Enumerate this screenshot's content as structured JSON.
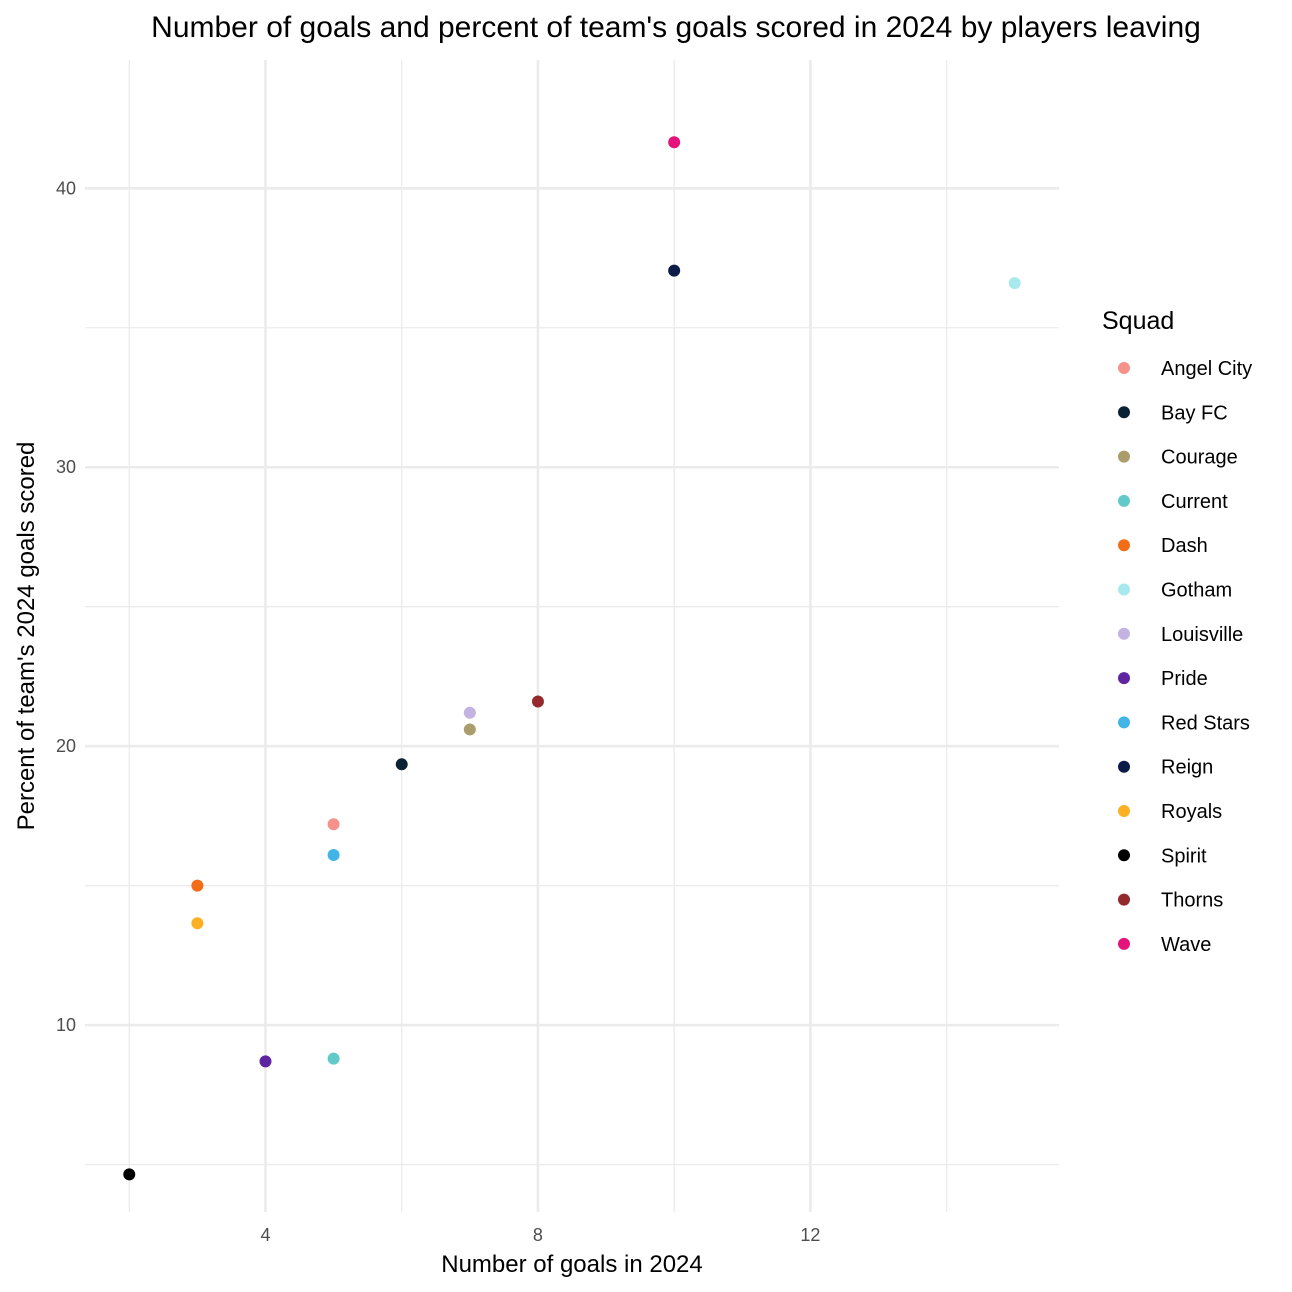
{
  "chart_data": {
    "type": "scatter",
    "title": "Number of goals and percent of team's goals scored in 2024 by players leaving",
    "xlabel": "Number of goals in 2024",
    "ylabel": "Percent of team's 2024 goals scored",
    "xlim": [
      1.35,
      15.65
    ],
    "ylim": [
      3.3,
      44.6
    ],
    "x_ticks": [
      4,
      8,
      12
    ],
    "y_ticks": [
      10,
      20,
      30,
      40
    ],
    "x_minor_ticks": [
      2,
      6,
      10,
      14
    ],
    "y_minor_ticks": [
      5,
      15,
      25,
      35
    ],
    "grid": true,
    "legend": {
      "title": "Squad",
      "position": "right"
    },
    "series": [
      {
        "name": "Angel City",
        "color": "#f4928b",
        "points": [
          {
            "x": 5,
            "y": 17.2
          }
        ]
      },
      {
        "name": "Bay FC",
        "color": "#0b2134",
        "points": [
          {
            "x": 6,
            "y": 19.35
          }
        ]
      },
      {
        "name": "Courage",
        "color": "#ab9c6c",
        "points": [
          {
            "x": 7,
            "y": 20.6
          }
        ]
      },
      {
        "name": "Current",
        "color": "#62cbc9",
        "points": [
          {
            "x": 5,
            "y": 8.8
          }
        ]
      },
      {
        "name": "Dash",
        "color": "#f36c17",
        "points": [
          {
            "x": 3,
            "y": 15.0
          }
        ]
      },
      {
        "name": "Gotham",
        "color": "#a7e9ee",
        "points": [
          {
            "x": 15,
            "y": 36.6
          }
        ]
      },
      {
        "name": "Louisville",
        "color": "#c3b2e2",
        "points": [
          {
            "x": 7,
            "y": 21.2
          }
        ]
      },
      {
        "name": "Pride",
        "color": "#5f249f",
        "points": [
          {
            "x": 4,
            "y": 8.7
          }
        ]
      },
      {
        "name": "Red Stars",
        "color": "#41b6e6",
        "points": [
          {
            "x": 5,
            "y": 16.1
          }
        ]
      },
      {
        "name": "Reign",
        "color": "#0c1b47",
        "points": [
          {
            "x": 10,
            "y": 37.05
          }
        ]
      },
      {
        "name": "Royals",
        "color": "#fcb125",
        "points": [
          {
            "x": 3,
            "y": 13.65
          }
        ]
      },
      {
        "name": "Spirit",
        "color": "#000000",
        "points": [
          {
            "x": 2,
            "y": 4.65
          }
        ]
      },
      {
        "name": "Thorns",
        "color": "#952a2e",
        "points": [
          {
            "x": 8,
            "y": 21.6
          }
        ]
      },
      {
        "name": "Wave",
        "color": "#e5147a",
        "points": [
          {
            "x": 10,
            "y": 41.65
          }
        ]
      }
    ]
  }
}
